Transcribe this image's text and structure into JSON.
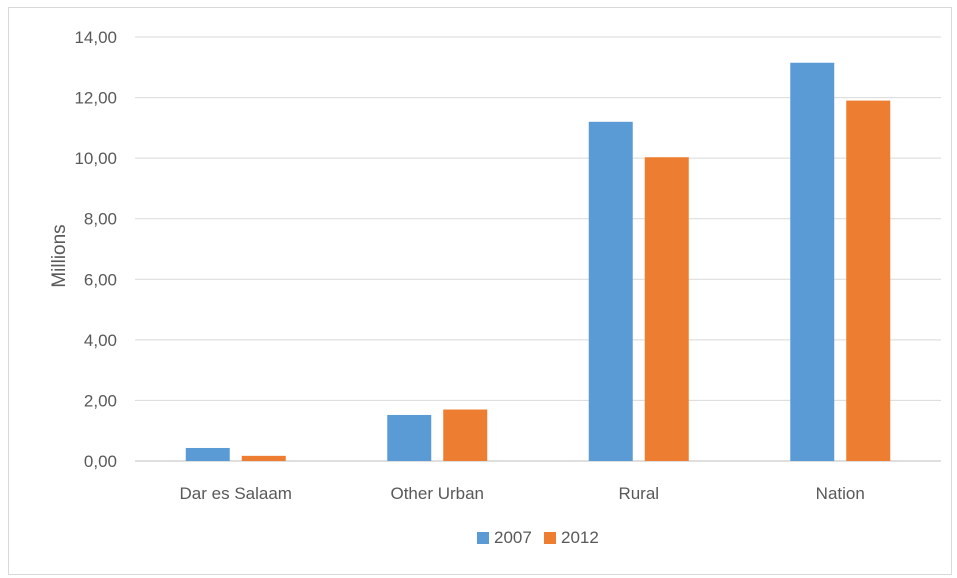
{
  "chart_data": {
    "type": "bar",
    "title": "",
    "xlabel": "",
    "ylabel": "Millions",
    "categories": [
      "Dar es Salaam",
      "Other Urban",
      "Rural",
      "Nation"
    ],
    "series": [
      {
        "name": "2007",
        "color": "#5B9BD5",
        "values": [
          0.43,
          1.52,
          11.2,
          13.15
        ]
      },
      {
        "name": "2012",
        "color": "#ED7D31",
        "values": [
          0.17,
          1.7,
          10.03,
          11.9
        ]
      }
    ],
    "ylim": [
      0,
      14
    ],
    "yticks": [
      "0,00",
      "2,00",
      "4,00",
      "6,00",
      "8,00",
      "10,00",
      "12,00",
      "14,00"
    ],
    "grid": true,
    "legend": "bottom"
  }
}
